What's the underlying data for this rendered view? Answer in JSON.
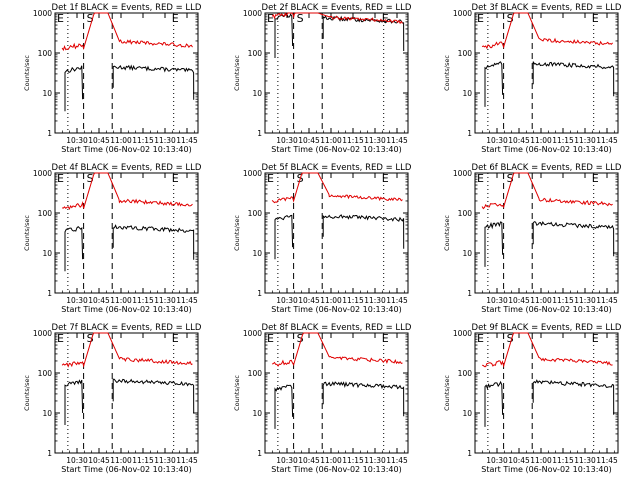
{
  "colors": {
    "events": "#000000",
    "lld": "#e00000",
    "axis": "#000000",
    "background": "#ffffff"
  },
  "chart_data": [
    {
      "type": "line",
      "title": "Det 1f BLACK = Events, RED = LLD",
      "xlabel": "Start Time (06-Nov-02 10:13:40)",
      "ylabel": "Counts/sec",
      "yscale": "log",
      "ylim": [
        1,
        1000
      ],
      "xticks": [
        "10:30",
        "10:45",
        "11:00",
        "11:15",
        "11:30",
        "11:45"
      ],
      "yticks": [
        "1",
        "10",
        "100",
        "1000"
      ],
      "markers": [
        "E",
        "S",
        "E"
      ],
      "series": [
        {
          "name": "Events",
          "color": "#000000",
          "level_before": 35,
          "level_after": 45
        },
        {
          "name": "LLD",
          "color": "#e00000",
          "level_before": 130,
          "level_after": 200
        }
      ]
    },
    {
      "type": "line",
      "title": "Det 2f BLACK = Events, RED = LLD",
      "xlabel": "Start Time (06-Nov-02 10:13:40)",
      "ylabel": "Counts/sec",
      "yscale": "log",
      "ylim": [
        1,
        1000
      ],
      "xticks": [
        "10:30",
        "10:45",
        "11:00",
        "11:15",
        "11:30",
        "11:45"
      ],
      "yticks": [
        "1",
        "10",
        "100",
        "1000"
      ],
      "markers": [
        "E",
        "S",
        "E"
      ],
      "series": [
        {
          "name": "Events",
          "color": "#000000",
          "level_before": 750,
          "level_after": 750
        },
        {
          "name": "LLD",
          "color": "#e00000",
          "level_before": 800,
          "level_after": 800
        }
      ]
    },
    {
      "type": "line",
      "title": "Det 3f BLACK = Events, RED = LLD",
      "xlabel": "Start Time (06-Nov-02 10:13:40)",
      "ylabel": "Counts/sec",
      "yscale": "log",
      "ylim": [
        1,
        1000
      ],
      "xticks": [
        "10:30",
        "10:45",
        "11:00",
        "11:15",
        "11:30",
        "11:45"
      ],
      "yticks": [
        "1",
        "10",
        "100",
        "1000"
      ],
      "markers": [
        "E",
        "S",
        "E"
      ],
      "series": [
        {
          "name": "Events",
          "color": "#000000",
          "level_before": 45,
          "level_after": 55
        },
        {
          "name": "LLD",
          "color": "#e00000",
          "level_before": 140,
          "level_after": 220
        }
      ]
    },
    {
      "type": "line",
      "title": "Det 4f BLACK = Events, RED = LLD",
      "xlabel": "Start Time (06-Nov-02 10:13:40)",
      "ylabel": "Counts/sec",
      "yscale": "log",
      "ylim": [
        1,
        1000
      ],
      "xticks": [
        "10:30",
        "10:45",
        "11:00",
        "11:15",
        "11:30",
        "11:45"
      ],
      "yticks": [
        "1",
        "10",
        "100",
        "1000"
      ],
      "markers": [
        "E",
        "S",
        "E"
      ],
      "series": [
        {
          "name": "Events",
          "color": "#000000",
          "level_before": 35,
          "level_after": 45
        },
        {
          "name": "LLD",
          "color": "#e00000",
          "level_before": 130,
          "level_after": 210
        }
      ]
    },
    {
      "type": "line",
      "title": "Det 5f BLACK = Events, RED = LLD",
      "xlabel": "Start Time (06-Nov-02 10:13:40)",
      "ylabel": "Counts/sec",
      "yscale": "log",
      "ylim": [
        1,
        1000
      ],
      "xticks": [
        "10:30",
        "10:45",
        "11:00",
        "11:15",
        "11:30",
        "11:45"
      ],
      "yticks": [
        "1",
        "10",
        "100",
        "1000"
      ],
      "markers": [
        "E",
        "S",
        "E"
      ],
      "series": [
        {
          "name": "Events",
          "color": "#000000",
          "level_before": 70,
          "level_after": 85
        },
        {
          "name": "LLD",
          "color": "#e00000",
          "level_before": 200,
          "level_after": 280
        }
      ]
    },
    {
      "type": "line",
      "title": "Det 6f BLACK = Events, RED = LLD",
      "xlabel": "Start Time (06-Nov-02 10:13:40)",
      "ylabel": "Counts/sec",
      "yscale": "log",
      "ylim": [
        1,
        1000
      ],
      "xticks": [
        "10:30",
        "10:45",
        "11:00",
        "11:15",
        "11:30",
        "11:45"
      ],
      "yticks": [
        "1",
        "10",
        "100",
        "1000"
      ],
      "markers": [
        "E",
        "S",
        "E"
      ],
      "series": [
        {
          "name": "Events",
          "color": "#000000",
          "level_before": 45,
          "level_after": 55
        },
        {
          "name": "LLD",
          "color": "#e00000",
          "level_before": 140,
          "level_after": 220
        }
      ]
    },
    {
      "type": "line",
      "title": "Det 7f BLACK = Events, RED = LLD",
      "xlabel": "Start Time (06-Nov-02 10:13:40)",
      "ylabel": "Counts/sec",
      "yscale": "log",
      "ylim": [
        1,
        1000
      ],
      "xticks": [
        "10:30",
        "10:45",
        "11:00",
        "11:15",
        "11:30",
        "11:45"
      ],
      "yticks": [
        "1",
        "10",
        "100",
        "1000"
      ],
      "markers": [
        "E",
        "S",
        "E"
      ],
      "series": [
        {
          "name": "Events",
          "color": "#000000",
          "level_before": 50,
          "level_after": 65
        },
        {
          "name": "LLD",
          "color": "#e00000",
          "level_before": 150,
          "level_after": 230
        }
      ]
    },
    {
      "type": "line",
      "title": "Det 8f BLACK = Events, RED = LLD",
      "xlabel": "Start Time (06-Nov-02 10:13:40)",
      "ylabel": "Counts/sec",
      "yscale": "log",
      "ylim": [
        1,
        1000
      ],
      "xticks": [
        "10:30",
        "10:45",
        "11:00",
        "11:15",
        "11:30",
        "11:45"
      ],
      "yticks": [
        "1",
        "10",
        "100",
        "1000"
      ],
      "markers": [
        "E",
        "S",
        "E"
      ],
      "series": [
        {
          "name": "Events",
          "color": "#000000",
          "level_before": 40,
          "level_after": 55
        },
        {
          "name": "LLD",
          "color": "#e00000",
          "level_before": 160,
          "level_after": 250
        }
      ]
    },
    {
      "type": "line",
      "title": "Det 9f BLACK = Events, RED = LLD",
      "xlabel": "Start Time (06-Nov-02 10:13:40)",
      "ylabel": "Counts/sec",
      "yscale": "log",
      "ylim": [
        1,
        1000
      ],
      "xticks": [
        "10:30",
        "10:45",
        "11:00",
        "11:15",
        "11:30",
        "11:45"
      ],
      "yticks": [
        "1",
        "10",
        "100",
        "1000"
      ],
      "markers": [
        "E",
        "S",
        "E"
      ],
      "series": [
        {
          "name": "Events",
          "color": "#000000",
          "level_before": 45,
          "level_after": 60
        },
        {
          "name": "LLD",
          "color": "#e00000",
          "level_before": 150,
          "level_after": 230
        }
      ]
    }
  ]
}
